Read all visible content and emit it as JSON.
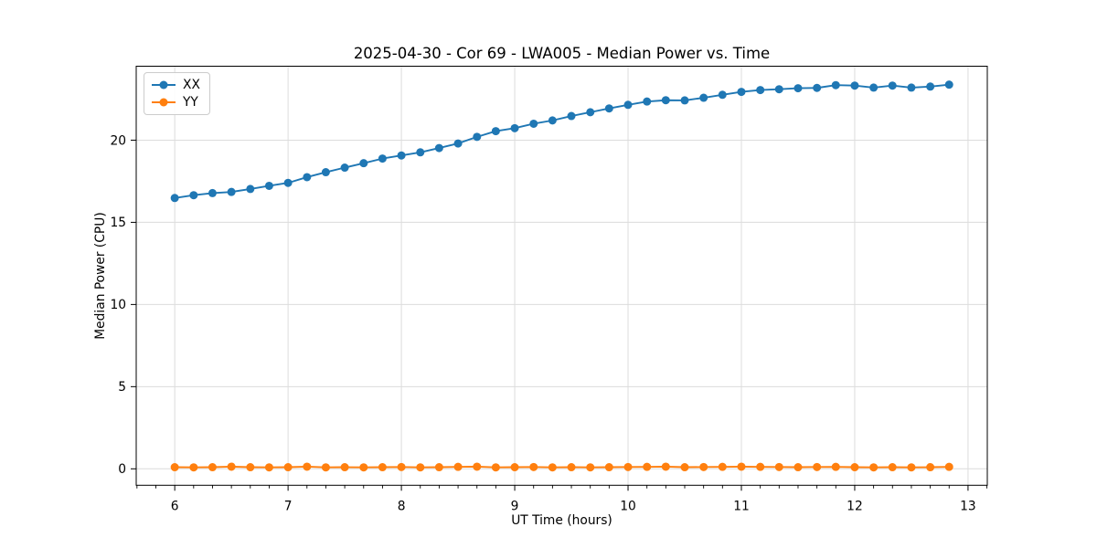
{
  "chart_data": {
    "type": "line",
    "title": "2025-04-30 - Cor 69 - LWA005 - Median Power vs. Time",
    "xlabel": "UT Time (hours)",
    "ylabel": "Median Power (CPU)",
    "xlim": [
      5.66,
      13.17
    ],
    "ylim": [
      -1.0,
      24.5
    ],
    "x_ticks": [
      6,
      7,
      8,
      9,
      10,
      11,
      12,
      13
    ],
    "y_ticks": [
      0,
      5,
      10,
      15,
      20
    ],
    "x_minor_per_major": 6,
    "grid": true,
    "grid_color": "#dcdcdc",
    "frame_color": "#000000",
    "legend_position": "upper left",
    "marker": "circle",
    "x": [
      6.0,
      6.167,
      6.333,
      6.5,
      6.667,
      6.833,
      7.0,
      7.167,
      7.333,
      7.5,
      7.667,
      7.833,
      8.0,
      8.167,
      8.333,
      8.5,
      8.667,
      8.833,
      9.0,
      9.167,
      9.333,
      9.5,
      9.667,
      9.833,
      10.0,
      10.167,
      10.333,
      10.5,
      10.667,
      10.833,
      11.0,
      11.167,
      11.333,
      11.5,
      11.667,
      11.833,
      12.0,
      12.167,
      12.333,
      12.5,
      12.667,
      12.833
    ],
    "series": [
      {
        "name": "XX",
        "color": "#1f77b4",
        "values": [
          16.48,
          16.65,
          16.78,
          16.85,
          17.03,
          17.22,
          17.4,
          17.75,
          18.05,
          18.33,
          18.6,
          18.88,
          19.07,
          19.26,
          19.52,
          19.8,
          20.2,
          20.55,
          20.73,
          21.0,
          21.2,
          21.47,
          21.7,
          21.93,
          22.15,
          22.35,
          22.43,
          22.42,
          22.58,
          22.76,
          22.94,
          23.05,
          23.1,
          23.16,
          23.18,
          23.35,
          23.32,
          23.2,
          23.32,
          23.2,
          23.26,
          23.38
        ]
      },
      {
        "name": "YY",
        "color": "#ff7f0e",
        "values": [
          0.1,
          0.09,
          0.1,
          0.13,
          0.1,
          0.09,
          0.1,
          0.13,
          0.09,
          0.1,
          0.09,
          0.1,
          0.11,
          0.09,
          0.1,
          0.12,
          0.13,
          0.09,
          0.1,
          0.11,
          0.09,
          0.1,
          0.09,
          0.1,
          0.11,
          0.12,
          0.13,
          0.1,
          0.11,
          0.12,
          0.13,
          0.12,
          0.11,
          0.1,
          0.11,
          0.12,
          0.1,
          0.09,
          0.1,
          0.09,
          0.1,
          0.12
        ]
      }
    ]
  }
}
